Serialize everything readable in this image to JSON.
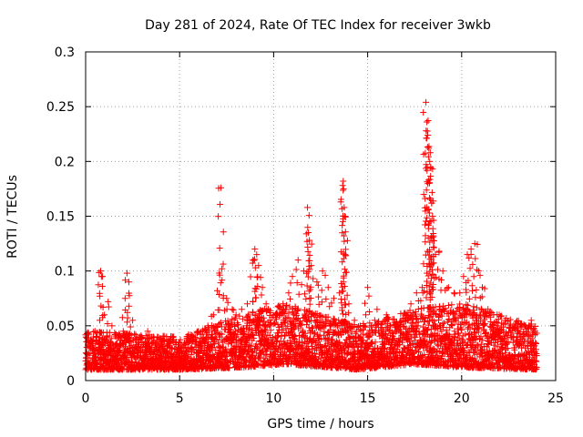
{
  "chart_data": {
    "type": "scatter",
    "title": "Day 281 of 2024, Rate Of TEC Index for receiver 3wkb",
    "xlabel": "GPS time / hours",
    "ylabel": "ROTI / TECUs",
    "xlim": [
      0,
      25
    ],
    "ylim": [
      0,
      0.3
    ],
    "xticks": [
      0,
      5,
      10,
      15,
      20,
      25
    ],
    "xtick_labels": [
      "0",
      "5",
      "10",
      "15",
      "20",
      "25"
    ],
    "yticks": [
      0,
      0.05,
      0.1,
      0.15,
      0.2,
      0.25,
      0.3
    ],
    "ytick_labels": [
      "0",
      "0.05",
      "0.1",
      "0.15",
      "0.2",
      "0.25",
      "0.3"
    ],
    "grid": true,
    "marker": "+",
    "series": [
      {
        "name": "ROTI",
        "color": "#ff0000",
        "points": [
          [
            0.1,
            0.018
          ],
          [
            0.3,
            0.035
          ],
          [
            0.5,
            0.045
          ],
          [
            0.7,
            0.03
          ],
          [
            0.8,
            0.1
          ],
          [
            0.9,
            0.095
          ],
          [
            1.0,
            0.06
          ],
          [
            1.2,
            0.072
          ],
          [
            1.4,
            0.05
          ],
          [
            1.6,
            0.04
          ],
          [
            1.8,
            0.03
          ],
          [
            2.0,
            0.045
          ],
          [
            2.1,
            0.075
          ],
          [
            2.2,
            0.098
          ],
          [
            2.3,
            0.09
          ],
          [
            2.5,
            0.055
          ],
          [
            2.8,
            0.035
          ],
          [
            3.0,
            0.03
          ],
          [
            3.3,
            0.045
          ],
          [
            3.6,
            0.04
          ],
          [
            4.0,
            0.035
          ],
          [
            4.5,
            0.03
          ],
          [
            5.0,
            0.025
          ],
          [
            5.5,
            0.035
          ],
          [
            6.0,
            0.045
          ],
          [
            6.5,
            0.05
          ],
          [
            6.8,
            0.06
          ],
          [
            7.0,
            0.082
          ],
          [
            7.2,
            0.176
          ],
          [
            7.25,
            0.102
          ],
          [
            7.5,
            0.075
          ],
          [
            7.8,
            0.065
          ],
          [
            8.0,
            0.06
          ],
          [
            8.3,
            0.065
          ],
          [
            8.6,
            0.07
          ],
          [
            8.9,
            0.11
          ],
          [
            9.0,
            0.12
          ],
          [
            9.1,
            0.115
          ],
          [
            9.2,
            0.105
          ],
          [
            9.4,
            0.085
          ],
          [
            9.6,
            0.07
          ],
          [
            9.8,
            0.055
          ],
          [
            10.2,
            0.06
          ],
          [
            10.5,
            0.07
          ],
          [
            10.8,
            0.08
          ],
          [
            11.0,
            0.095
          ],
          [
            11.3,
            0.11
          ],
          [
            11.6,
            0.1
          ],
          [
            11.8,
            0.158
          ],
          [
            11.85,
            0.135
          ],
          [
            11.9,
            0.128
          ],
          [
            12.0,
            0.105
          ],
          [
            12.3,
            0.09
          ],
          [
            12.6,
            0.1
          ],
          [
            12.9,
            0.085
          ],
          [
            13.2,
            0.075
          ],
          [
            13.5,
            0.08
          ],
          [
            13.7,
            0.182
          ],
          [
            13.72,
            0.175
          ],
          [
            13.75,
            0.158
          ],
          [
            13.78,
            0.15
          ],
          [
            13.8,
            0.115
          ],
          [
            14.0,
            0.07
          ],
          [
            14.3,
            0.055
          ],
          [
            14.6,
            0.05
          ],
          [
            14.9,
            0.06
          ],
          [
            15.0,
            0.085
          ],
          [
            15.5,
            0.065
          ],
          [
            16.0,
            0.06
          ],
          [
            16.5,
            0.05
          ],
          [
            17.0,
            0.06
          ],
          [
            17.3,
            0.07
          ],
          [
            17.6,
            0.08
          ],
          [
            17.9,
            0.085
          ],
          [
            18.1,
            0.254
          ],
          [
            18.15,
            0.236
          ],
          [
            18.2,
            0.224
          ],
          [
            18.25,
            0.212
          ],
          [
            18.3,
            0.2
          ],
          [
            18.35,
            0.195
          ],
          [
            18.4,
            0.162
          ],
          [
            18.45,
            0.15
          ],
          [
            18.5,
            0.132
          ],
          [
            18.6,
            0.115
          ],
          [
            18.8,
            0.118
          ],
          [
            19.0,
            0.1
          ],
          [
            19.3,
            0.085
          ],
          [
            19.6,
            0.08
          ],
          [
            19.9,
            0.08
          ],
          [
            20.1,
            0.095
          ],
          [
            20.3,
            0.115
          ],
          [
            20.5,
            0.12
          ],
          [
            20.7,
            0.125
          ],
          [
            20.9,
            0.1
          ],
          [
            21.1,
            0.085
          ],
          [
            21.4,
            0.065
          ],
          [
            21.7,
            0.06
          ],
          [
            22.0,
            0.06
          ],
          [
            22.3,
            0.055
          ],
          [
            22.6,
            0.05
          ],
          [
            23.0,
            0.045
          ],
          [
            23.4,
            0.05
          ],
          [
            23.7,
            0.055
          ],
          [
            23.9,
            0.045
          ]
        ],
        "baseline_band": [
          [
            0,
            0.01,
            0.045
          ],
          [
            5,
            0.01,
            0.04
          ],
          [
            8.5,
            0.012,
            0.06
          ],
          [
            10.5,
            0.015,
            0.07
          ],
          [
            14.5,
            0.01,
            0.05
          ],
          [
            17.5,
            0.015,
            0.065
          ],
          [
            20,
            0.012,
            0.07
          ],
          [
            24,
            0.01,
            0.05
          ]
        ]
      }
    ]
  }
}
